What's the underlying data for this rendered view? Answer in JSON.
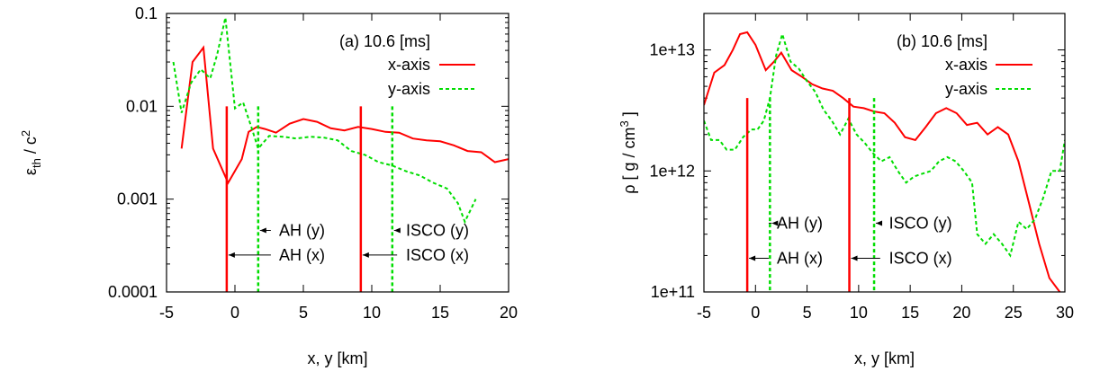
{
  "chart_data": [
    {
      "type": "line",
      "panel_label": "(a) 10.6 [ms]",
      "xlabel": "x, y [km]",
      "ylabel": {
        "base": "ε",
        "sub": "th",
        "rest": " / c",
        "sup": "2"
      },
      "yscale": "log",
      "xlim": [
        -5,
        20
      ],
      "ylim": [
        0.0001,
        0.1
      ],
      "xticks": [
        -5,
        0,
        5,
        10,
        15,
        20
      ],
      "xtick_labels": [
        "-5",
        "0",
        "5",
        "10",
        "15",
        "20"
      ],
      "yticks": [
        0.0001,
        0.001,
        0.01,
        0.1
      ],
      "ytick_labels": [
        "0.0001",
        "0.001",
        "0.01",
        "0.1"
      ],
      "legend_position": "top-right",
      "series": [
        {
          "name": "x-axis",
          "color": "#ff0000",
          "style": "solid",
          "x": [
            -3.9,
            -3.1,
            -2.3,
            -1.6,
            -0.5,
            0.5,
            1.0,
            1.6,
            2.2,
            3.0,
            4.0,
            5.0,
            6.0,
            7.0,
            8.0,
            9.0,
            10.0,
            11.0,
            12.0,
            13.0,
            14.0,
            15.0,
            16.0,
            17.0,
            18.0,
            19.0,
            20.0
          ],
          "y": [
            0.0035,
            0.03,
            0.043,
            0.0035,
            0.0015,
            0.0027,
            0.0053,
            0.006,
            0.0057,
            0.0052,
            0.0065,
            0.0073,
            0.0068,
            0.0058,
            0.0055,
            0.006,
            0.0057,
            0.0053,
            0.0052,
            0.0045,
            0.0043,
            0.0042,
            0.0038,
            0.0033,
            0.0032,
            0.0025,
            0.0027
          ]
        },
        {
          "name": "y-axis",
          "color": "#00dd00",
          "style": "dashed",
          "x": [
            -4.5,
            -3.9,
            -3.2,
            -2.5,
            -1.8,
            -1.3,
            -0.7,
            0.0,
            0.6,
            1.2,
            1.7,
            2.5,
            3.5,
            4.5,
            5.5,
            6.5,
            7.5,
            8.5,
            9.5,
            10.5,
            11.5,
            12.5,
            13.5,
            14.5,
            15.5,
            16.3,
            16.8,
            17.6
          ],
          "y": [
            0.03,
            0.0085,
            0.018,
            0.025,
            0.02,
            0.036,
            0.09,
            0.0095,
            0.011,
            0.006,
            0.0035,
            0.0048,
            0.0047,
            0.0045,
            0.0047,
            0.0046,
            0.0043,
            0.0033,
            0.003,
            0.0025,
            0.0023,
            0.002,
            0.0018,
            0.0015,
            0.0013,
            0.0009,
            0.00057,
            0.001
          ]
        }
      ],
      "vertical_markers": [
        {
          "x": -0.6,
          "color": "#ff0000",
          "style": "solid",
          "y_top": 0.01
        },
        {
          "x": 9.2,
          "color": "#ff0000",
          "style": "solid",
          "y_top": 0.01
        },
        {
          "x": 1.7,
          "color": "#00dd00",
          "style": "dashed",
          "y_top": 0.01
        },
        {
          "x": 11.5,
          "color": "#00dd00",
          "style": "dashed",
          "y_top": 0.01
        }
      ],
      "annotations": [
        {
          "text": "AH (y)",
          "x": 4.9,
          "y": 0.00046,
          "arrow_to_x": 1.7
        },
        {
          "text": "AH (x)",
          "x": 4.9,
          "y": 0.00025,
          "arrow_to_x": -0.6
        },
        {
          "text": "ISCO (y)",
          "x": 14.8,
          "y": 0.00046,
          "arrow_to_x": 11.5
        },
        {
          "text": "ISCO (x)",
          "x": 14.8,
          "y": 0.00025,
          "arrow_to_x": 9.2
        }
      ]
    },
    {
      "type": "line",
      "panel_label": "(b) 10.6 [ms]",
      "xlabel": "x, y [km]",
      "ylabel": {
        "base": "ρ [ g / cm",
        "sub": "",
        "rest": " ]",
        "sup": "3"
      },
      "yscale": "log",
      "xlim": [
        -5,
        30
      ],
      "ylim": [
        100000000000,
        20000000000000
      ],
      "xticks": [
        -5,
        0,
        5,
        10,
        15,
        20,
        25,
        30
      ],
      "xtick_labels": [
        "-5",
        "0",
        "5",
        "10",
        "15",
        "20",
        "25",
        "30"
      ],
      "yticks": [
        100000000000,
        1000000000000,
        10000000000000
      ],
      "ytick_labels": [
        "1e+11",
        "1e+12",
        "1e+13"
      ],
      "legend_position": "top-right",
      "series": [
        {
          "name": "x-axis",
          "color": "#ff0000",
          "style": "solid",
          "x": [
            -5.0,
            -4.0,
            -3.0,
            -2.2,
            -1.5,
            -0.8,
            0.0,
            1.0,
            1.8,
            2.5,
            3.5,
            4.5,
            5.5,
            6.5,
            7.5,
            8.5,
            9.5,
            10.5,
            11.5,
            12.5,
            13.5,
            14.5,
            15.5,
            16.5,
            17.5,
            18.5,
            19.5,
            20.5,
            21.5,
            22.5,
            23.5,
            24.5,
            25.5,
            26.5,
            27.5,
            28.5,
            29.5
          ],
          "y": [
            3500000000000,
            6500000000000,
            7500000000000,
            10000000000000,
            13500000000000,
            14000000000000,
            11000000000000,
            6800000000000,
            8000000000000,
            9500000000000,
            6800000000000,
            6000000000000,
            5200000000000,
            4800000000000,
            4600000000000,
            4000000000000,
            3400000000000,
            3300000000000,
            3100000000000,
            3000000000000,
            2500000000000,
            1900000000000,
            1800000000000,
            2300000000000,
            3000000000000,
            3300000000000,
            3000000000000,
            2400000000000,
            2500000000000,
            2000000000000,
            2300000000000,
            2000000000000,
            1200000000000,
            550000000000,
            250000000000,
            130000000000,
            100000000000
          ]
        },
        {
          "name": "y-axis",
          "color": "#00dd00",
          "style": "dashed",
          "x": [
            -5.0,
            -4.3,
            -3.5,
            -2.8,
            -2.0,
            -1.2,
            -0.4,
            0.2,
            0.8,
            1.4,
            2.0,
            2.6,
            3.4,
            4.2,
            5.0,
            5.8,
            6.6,
            7.4,
            8.2,
            9.0,
            9.8,
            10.6,
            11.4,
            12.2,
            13.0,
            13.8,
            14.6,
            15.4,
            16.2,
            17.0,
            17.8,
            18.6,
            19.4,
            20.2,
            21.0,
            21.5,
            22.3,
            23.1,
            23.9,
            24.7,
            25.5,
            26.3,
            27.1,
            27.9,
            28.7,
            29.5,
            30.0
          ],
          "y": [
            2600000000000,
            1800000000000,
            1800000000000,
            1500000000000,
            1500000000000,
            1900000000000,
            2200000000000,
            2200000000000,
            2600000000000,
            4000000000000,
            9000000000000,
            13500000000000,
            8000000000000,
            7000000000000,
            5500000000000,
            4500000000000,
            3200000000000,
            2600000000000,
            2000000000000,
            2700000000000,
            2000000000000,
            1700000000000,
            1400000000000,
            1200000000000,
            1300000000000,
            1000000000000,
            800000000000,
            900000000000,
            950000000000,
            1000000000000,
            1200000000000,
            1300000000000,
            1200000000000,
            1000000000000,
            800000000000,
            300000000000,
            250000000000,
            300000000000,
            250000000000,
            200000000000,
            380000000000,
            330000000000,
            400000000000,
            600000000000,
            1000000000000,
            1000000000000,
            1800000000000
          ]
        }
      ],
      "vertical_markers": [
        {
          "x": -0.8,
          "color": "#ff0000",
          "style": "solid",
          "y_top": 4000000000000
        },
        {
          "x": 9.1,
          "color": "#ff0000",
          "style": "solid",
          "y_top": 4000000000000
        },
        {
          "x": 1.4,
          "color": "#00dd00",
          "style": "dashed",
          "y_top": 4000000000000
        },
        {
          "x": 11.5,
          "color": "#00dd00",
          "style": "dashed",
          "y_top": 4000000000000
        }
      ],
      "annotations": [
        {
          "text": "AH (y)",
          "x": 4.3,
          "y": 370000000000,
          "arrow_to_x": 1.4
        },
        {
          "text": "AH (x)",
          "x": 4.3,
          "y": 190000000000,
          "arrow_to_x": -0.8
        },
        {
          "text": "ISCO (y)",
          "x": 16.0,
          "y": 370000000000,
          "arrow_to_x": 11.5
        },
        {
          "text": "ISCO (x)",
          "x": 16.0,
          "y": 190000000000,
          "arrow_to_x": 9.1
        }
      ]
    }
  ]
}
